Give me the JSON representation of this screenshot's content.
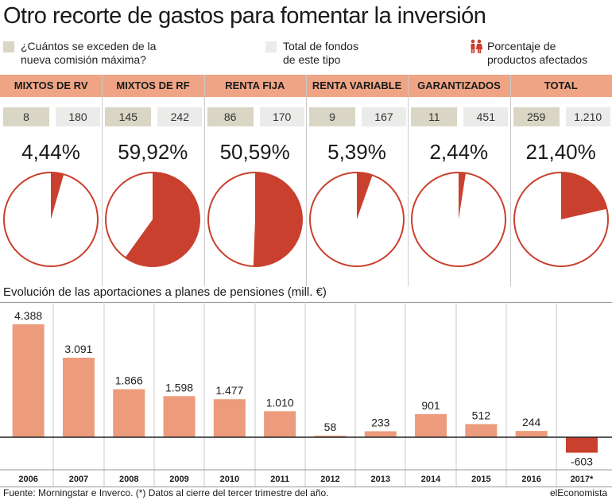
{
  "title": "Otro recorte de gastos para fomentar la inversión",
  "legend": {
    "exceed": "¿Cuántos se exceden de la\nnueva comisión máxima?",
    "total": "Total de fondos\nde este tipo",
    "percent": "Porcentaje de\nproductos afectados",
    "percent_icon": "people-icon"
  },
  "colors": {
    "band": "#efa585",
    "box_dark": "#d9d6c5",
    "box_light": "#ebebea",
    "pie_slice": "#c9402e",
    "pie_border": "#c9402e",
    "bar_positive": "#ec9c7c",
    "bar_negative": "#c9402e"
  },
  "chart_data": [
    {
      "type": "pie",
      "categories": [
        {
          "name": "MIXTOS DE RV",
          "exceed": "8",
          "total": "180",
          "percent": "4,44%",
          "value": 4.44
        },
        {
          "name": "MIXTOS DE RF",
          "exceed": "145",
          "total": "242",
          "percent": "59,92%",
          "value": 59.92
        },
        {
          "name": "RENTA FIJA",
          "exceed": "86",
          "total": "170",
          "percent": "50,59%",
          "value": 50.59
        },
        {
          "name": "RENTA VARIABLE",
          "exceed": "9",
          "total": "167",
          "percent": "5,39%",
          "value": 5.39
        },
        {
          "name": "GARANTIZADOS",
          "exceed": "11",
          "total": "451",
          "percent": "2,44%",
          "value": 2.44
        },
        {
          "name": "TOTAL",
          "exceed": "259",
          "total": "1.210",
          "percent": "21,40%",
          "value": 21.4
        }
      ]
    },
    {
      "type": "bar",
      "title": "Evolución de las aportaciones a planes de pensiones  (mill. €)",
      "categories": [
        "2006",
        "2007",
        "2008",
        "2009",
        "2010",
        "2011",
        "2012",
        "2013",
        "2014",
        "2015",
        "2016",
        "2017*"
      ],
      "values": [
        4388,
        3091,
        1866,
        1598,
        1477,
        1010,
        58,
        233,
        901,
        512,
        244,
        -603
      ],
      "labels": [
        "4.388",
        "3.091",
        "1.866",
        "1.598",
        "1.477",
        "1.010",
        "58",
        "233",
        "901",
        "512",
        "244",
        "-603"
      ],
      "ylim": [
        -603,
        4388
      ],
      "grid": false
    }
  ],
  "footer": {
    "source": "Fuente: Morningstar e Inverco. (*) Datos al cierre del tercer trimestre del año.",
    "brand": "elEconomista"
  }
}
